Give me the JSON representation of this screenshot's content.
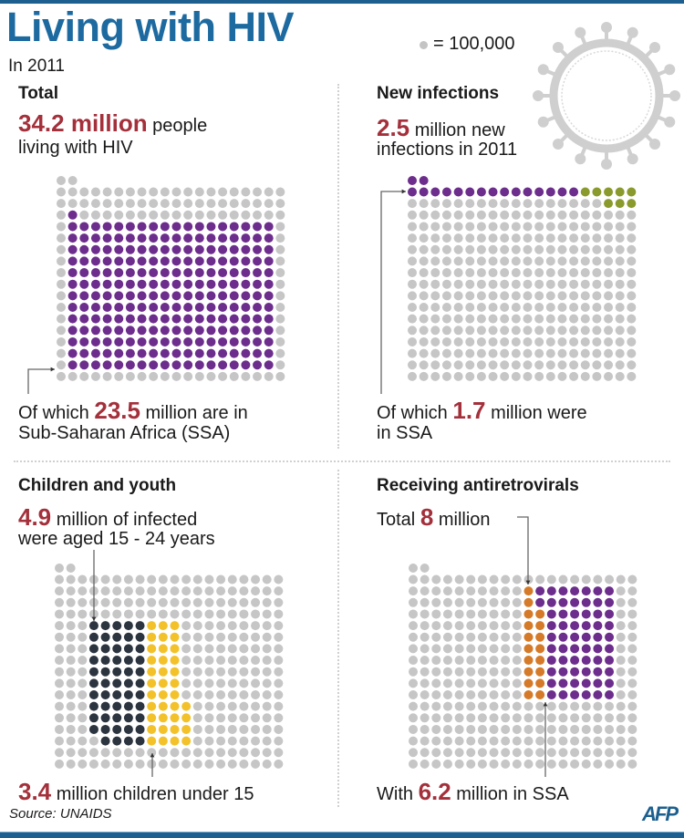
{
  "title": "Living with HIV",
  "subtitle": "In 2011",
  "legend": {
    "label": "= 100,000",
    "dot_color": "#c4c4c4"
  },
  "colors": {
    "gray": "#c6c6c6",
    "purple": "#6c2d8c",
    "green": "#8a9a2c",
    "dark": "#2c3440",
    "yellow": "#f3c22a",
    "orange": "#d57a28",
    "accent_number": "#a3303b",
    "title": "#1d6aa0"
  },
  "panels": {
    "total": {
      "heading": "Total",
      "number": "34.2 million",
      "text1": " people",
      "text2": "living with HIV",
      "footer_pre": "Of which ",
      "footer_number": "23.5",
      "footer_post": " million are in",
      "footer_line2": "Sub-Saharan Africa (SSA)"
    },
    "new_infections": {
      "heading": "New infections",
      "number": "2.5",
      "text1": " million new",
      "text2": "infections in 2011",
      "footer_pre": "Of which ",
      "footer_number": "1.7",
      "footer_post": " million were",
      "footer_line2": "in SSA"
    },
    "children": {
      "heading": "Children and youth",
      "number": "4.9",
      "text1": " million of infected",
      "text2": "were aged 15 - 24 years",
      "footer_number": "3.4",
      "footer_post": " million children under 15"
    },
    "arv": {
      "heading": "Receiving antiretrovirals",
      "text_pre": "Total ",
      "number": "8",
      "text1": " million",
      "footer_pre": "With ",
      "footer_number": "6.2",
      "footer_post": " million in SSA"
    }
  },
  "source": "Source: UNAIDS",
  "logo": "AFP"
}
